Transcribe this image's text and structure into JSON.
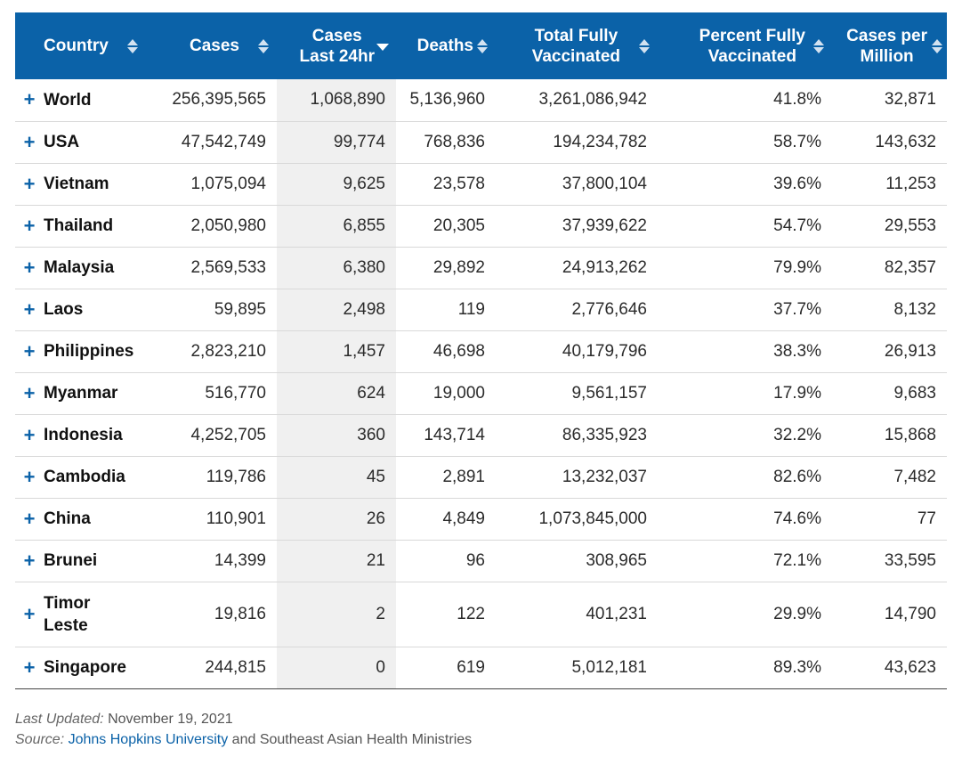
{
  "headers": {
    "country": "Country",
    "cases": "Cases",
    "cases24_line1": "Cases",
    "cases24_line2": "Last 24hr",
    "deaths": "Deaths",
    "vacc_line1": "Total Fully",
    "vacc_line2": "Vaccinated",
    "pct_line1": "Percent Fully",
    "pct_line2": "Vaccinated",
    "cpm_line1": "Cases per",
    "cpm_line2": "Million"
  },
  "expand_symbol": "+",
  "rows": [
    {
      "country": "World",
      "cases": "256,395,565",
      "cases24": "1,068,890",
      "deaths": "5,136,960",
      "vacc": "3,261,086,942",
      "pct": "41.8%",
      "cpm": "32,871"
    },
    {
      "country": "USA",
      "cases": "47,542,749",
      "cases24": "99,774",
      "deaths": "768,836",
      "vacc": "194,234,782",
      "pct": "58.7%",
      "cpm": "143,632"
    },
    {
      "country": "Vietnam",
      "cases": "1,075,094",
      "cases24": "9,625",
      "deaths": "23,578",
      "vacc": "37,800,104",
      "pct": "39.6%",
      "cpm": "11,253"
    },
    {
      "country": "Thailand",
      "cases": "2,050,980",
      "cases24": "6,855",
      "deaths": "20,305",
      "vacc": "37,939,622",
      "pct": "54.7%",
      "cpm": "29,553"
    },
    {
      "country": "Malaysia",
      "cases": "2,569,533",
      "cases24": "6,380",
      "deaths": "29,892",
      "vacc": "24,913,262",
      "pct": "79.9%",
      "cpm": "82,357"
    },
    {
      "country": "Laos",
      "cases": "59,895",
      "cases24": "2,498",
      "deaths": "119",
      "vacc": "2,776,646",
      "pct": "37.7%",
      "cpm": "8,132"
    },
    {
      "country": "Philippines",
      "cases": "2,823,210",
      "cases24": "1,457",
      "deaths": "46,698",
      "vacc": "40,179,796",
      "pct": "38.3%",
      "cpm": "26,913"
    },
    {
      "country": "Myanmar",
      "cases": "516,770",
      "cases24": "624",
      "deaths": "19,000",
      "vacc": "9,561,157",
      "pct": "17.9%",
      "cpm": "9,683"
    },
    {
      "country": "Indonesia",
      "cases": "4,252,705",
      "cases24": "360",
      "deaths": "143,714",
      "vacc": "86,335,923",
      "pct": "32.2%",
      "cpm": "15,868"
    },
    {
      "country": "Cambodia",
      "cases": "119,786",
      "cases24": "45",
      "deaths": "2,891",
      "vacc": "13,232,037",
      "pct": "82.6%",
      "cpm": "7,482"
    },
    {
      "country": "China",
      "cases": "110,901",
      "cases24": "26",
      "deaths": "4,849",
      "vacc": "1,073,845,000",
      "pct": "74.6%",
      "cpm": "77"
    },
    {
      "country": "Brunei",
      "cases": "14,399",
      "cases24": "21",
      "deaths": "96",
      "vacc": "308,965",
      "pct": "72.1%",
      "cpm": "33,595"
    },
    {
      "country": "Timor Leste",
      "cases": "19,816",
      "cases24": "2",
      "deaths": "122",
      "vacc": "401,231",
      "pct": "29.9%",
      "cpm": "14,790"
    },
    {
      "country": "Singapore",
      "cases": "244,815",
      "cases24": "0",
      "deaths": "619",
      "vacc": "5,012,181",
      "pct": "89.3%",
      "cpm": "43,623"
    }
  ],
  "footer": {
    "updated_label": "Last Updated:",
    "updated_value": "November 19, 2021",
    "source_label": "Source:",
    "source_link": "Johns Hopkins University",
    "source_rest": "and Southeast Asian Health Ministries"
  },
  "colors": {
    "header_bg": "#0b62a8",
    "accent": "#0b62a8",
    "sorted_col_bg": "#f0f0f0"
  },
  "sort": {
    "column": "Cases Last 24hr",
    "direction": "descending"
  }
}
